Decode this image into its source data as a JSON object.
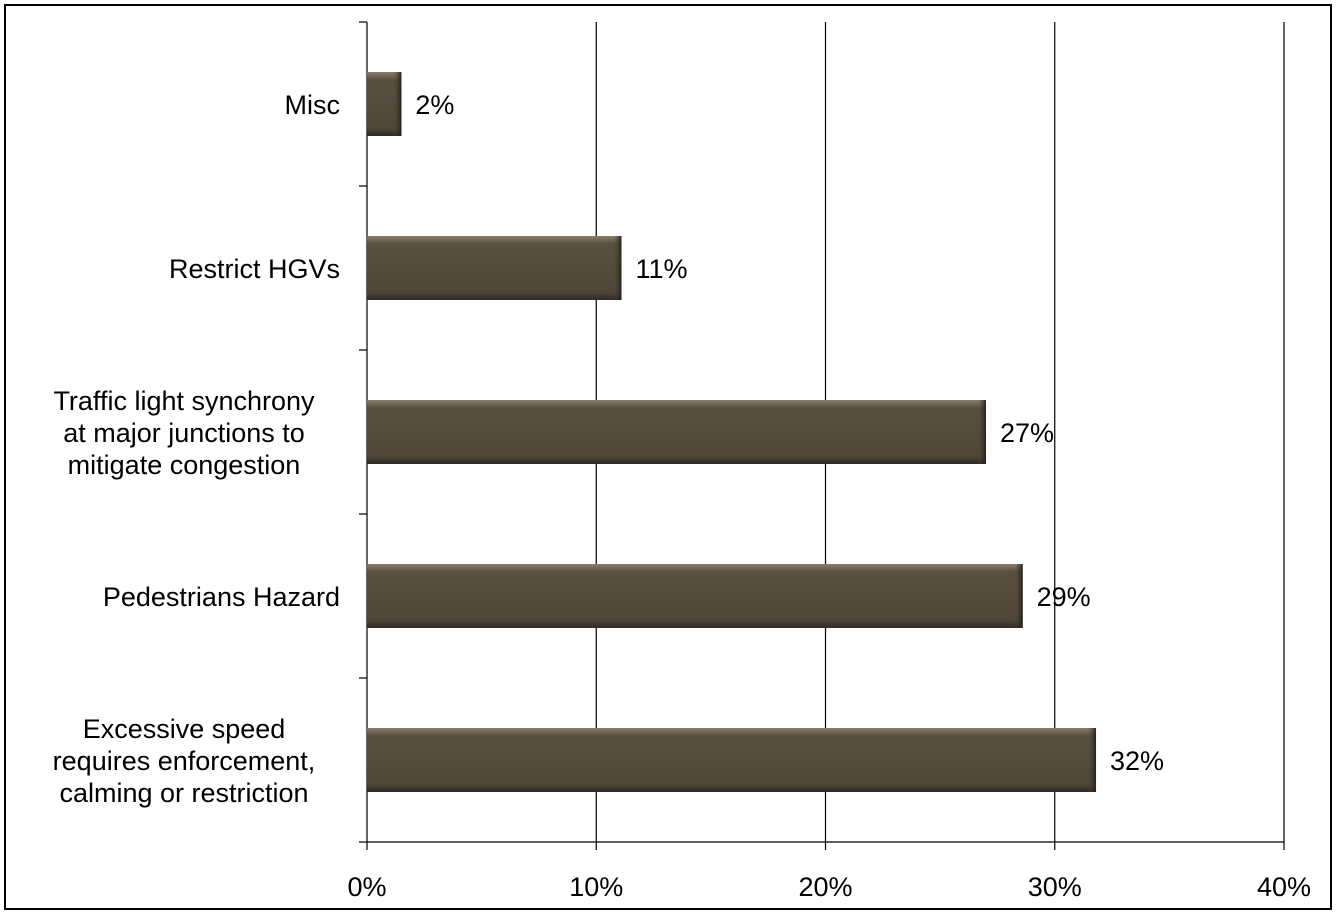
{
  "chart_data": {
    "type": "bar",
    "orientation": "horizontal",
    "categories": [
      [
        "Misc"
      ],
      [
        "Restrict HGVs"
      ],
      [
        "Traffic light synchrony",
        "at major junctions to",
        "mitigate congestion"
      ],
      [
        "Pedestrians Hazard"
      ],
      [
        "Excessive speed",
        "requires enforcement,",
        "calming or restriction"
      ]
    ],
    "values": [
      1.5,
      11.1,
      27.0,
      28.6,
      31.8
    ],
    "data_labels": [
      "2%",
      "11%",
      "27%",
      "29%",
      "32%"
    ],
    "xlim": [
      0,
      40
    ],
    "x_ticks": [
      0,
      10,
      20,
      30,
      40
    ],
    "x_tick_labels": [
      "0%",
      "10%",
      "20%",
      "30%",
      "40%"
    ],
    "title": "",
    "xlabel": "",
    "ylabel": "",
    "grid": "vertical major gridlines",
    "legend": "none",
    "bar_color": "#574d3e"
  }
}
